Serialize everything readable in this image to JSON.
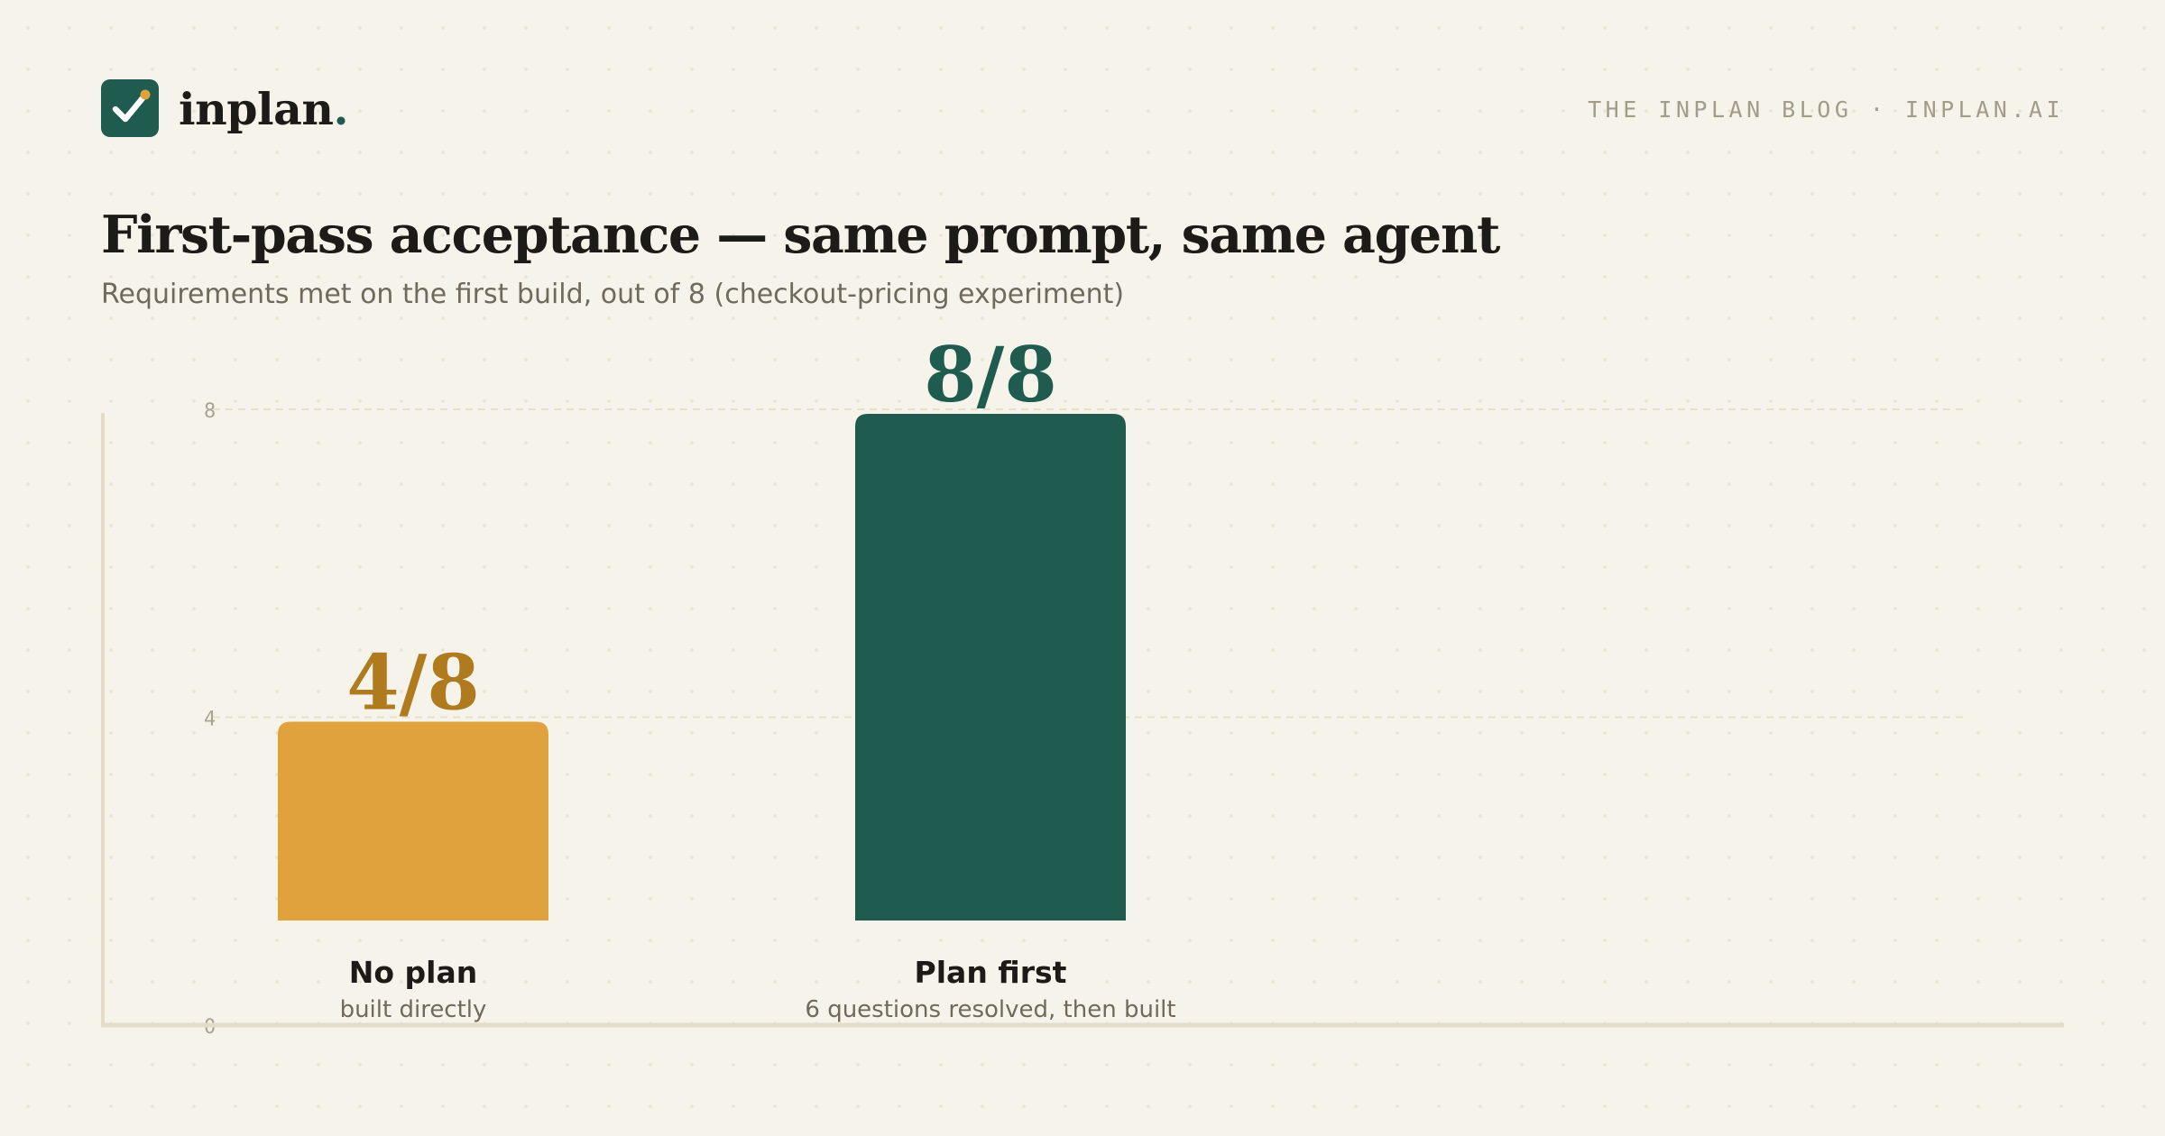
{
  "brand": {
    "name": "inplan",
    "dot": ".",
    "logo_icon": "checkbox-check-icon"
  },
  "header": {
    "tagline": "THE INPLAN BLOG · INPLAN.AI"
  },
  "colors": {
    "no_plan": "#dfa23c",
    "no_plan_label": "#b07a1f",
    "plan_first": "#1f5c4f",
    "logo_bg": "#1f5c4f",
    "logo_accent": "#dfa23c"
  },
  "chart_data": {
    "type": "bar",
    "title": "First-pass acceptance — same prompt, same agent",
    "subtitle": "Requirements met on the first build, out of 8 (checkout-pricing experiment)",
    "xlabel": "",
    "ylabel": "",
    "ylim": [
      0,
      8
    ],
    "yticks": [
      "0",
      "4",
      "8"
    ],
    "grid": true,
    "categories": [
      "No plan",
      "Plan first"
    ],
    "sublabels": [
      "built directly",
      "6 questions resolved, then built"
    ],
    "values": [
      4,
      8
    ],
    "value_labels": [
      "4/8",
      "8/8"
    ]
  }
}
